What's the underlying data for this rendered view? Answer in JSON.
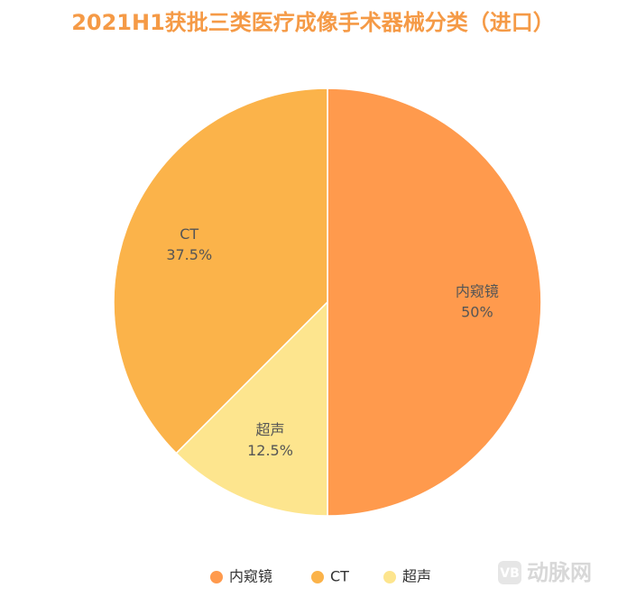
{
  "chart_data": {
    "type": "pie",
    "title": "2021H1获批三类医疗成像手术器械分类（进口）",
    "categories": [
      "内窥镜",
      "CT",
      "超声"
    ],
    "values": [
      50,
      37.5,
      12.5
    ],
    "value_labels": [
      "50%",
      "37.5%",
      "12.5%"
    ],
    "colors": [
      "#ff9a4d",
      "#fbb34a",
      "#fde58e"
    ],
    "watermark": "动脉网"
  }
}
